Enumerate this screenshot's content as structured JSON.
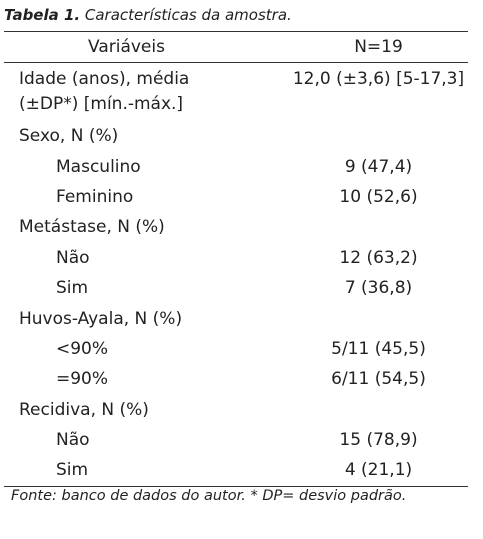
{
  "caption": {
    "label": "Tabela 1.",
    "text": "Características da amostra."
  },
  "header": [
    "Variáveis",
    "N=19"
  ],
  "sections": [
    {
      "label": [
        "Idade (anos), média",
        "(±DP*) [mín.-máx.]"
      ],
      "value": "12,0 (±3,6) [5-17,3]"
    },
    {
      "label": "Sexo, N (%)",
      "items": [
        [
          "Masculino",
          "9 (47,4)"
        ],
        [
          "Feminino",
          "10 (52,6)"
        ]
      ]
    },
    {
      "label": "Metástase, N (%)",
      "items": [
        [
          "Não",
          "12 (63,2)"
        ],
        [
          "Sim",
          "7 (36,8)"
        ]
      ]
    },
    {
      "label": "Huvos-Ayala, N (%)",
      "items": [
        [
          "<90%",
          "5/11 (45,5)"
        ],
        [
          "=90%",
          "6/11 (54,5)"
        ]
      ]
    },
    {
      "label": "Recidiva, N (%)",
      "items": [
        [
          "Não",
          "15 (78,9)"
        ],
        [
          "Sim",
          "4 (21,1)"
        ]
      ]
    }
  ],
  "footnote": "Fonte: banco de dados do autor. * DP= desvio padrão."
}
